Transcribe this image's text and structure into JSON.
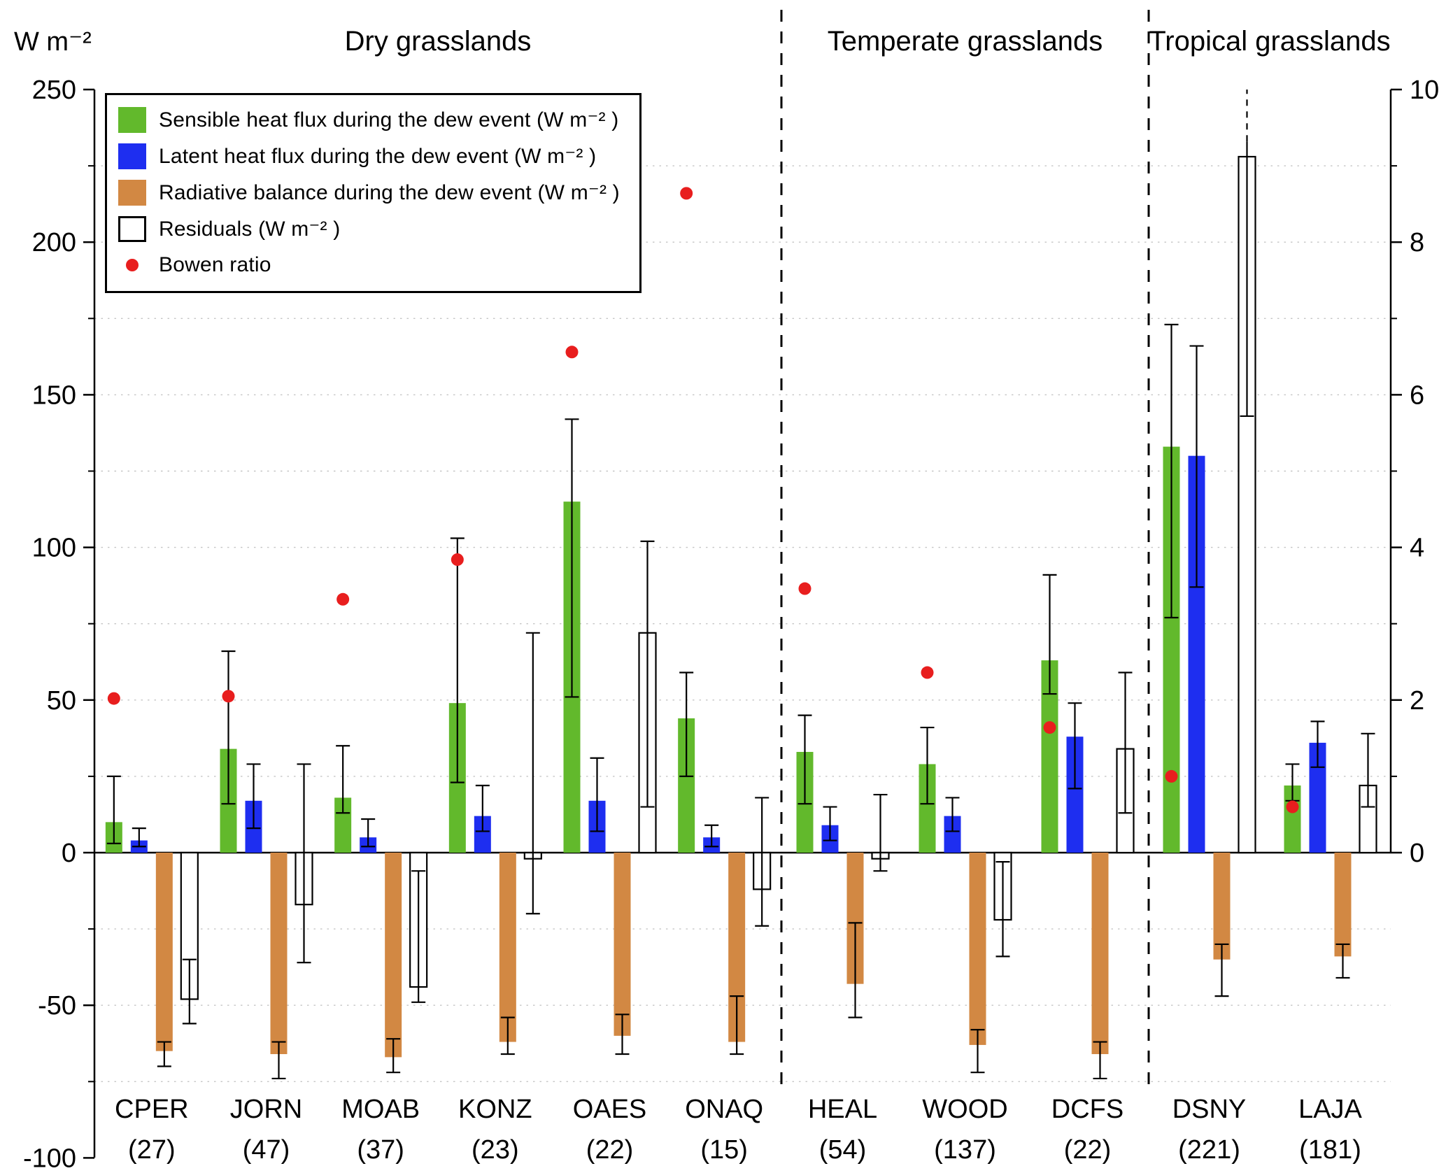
{
  "figure": {
    "y_axis_unit_label": "W m⁻²"
  },
  "legend": {
    "items": [
      {
        "key": "sensible",
        "label": "Sensible heat flux during the dew event (W m⁻² )"
      },
      {
        "key": "latent",
        "label": "Latent heat flux during the dew event (W m⁻² )"
      },
      {
        "key": "radiative",
        "label": "Radiative balance during the dew event (W m⁻² )"
      },
      {
        "key": "residuals",
        "label": "Residuals (W m⁻² )"
      },
      {
        "key": "bowen",
        "label": "Bowen ratio"
      }
    ]
  },
  "axes": {
    "left": {
      "ticks": [
        250,
        200,
        150,
        100,
        50,
        0,
        -50,
        -100
      ],
      "range": [
        -100,
        250
      ]
    },
    "right": {
      "ticks": [
        10,
        8,
        6,
        4,
        2,
        0
      ],
      "range": [
        0,
        10
      ]
    }
  },
  "chart_data": {
    "type": "bar",
    "title": "",
    "grid_color": "#c5c5c5",
    "ylim_left": [
      -100,
      250
    ],
    "ylim_right": [
      0,
      10
    ],
    "sections": [
      {
        "label": "Dry grasslands",
        "sites": 6
      },
      {
        "label": "Temperate grasslands",
        "sites": 3
      },
      {
        "label": "Tropical grasslands",
        "sites": 2
      }
    ],
    "categories": [
      "CPER",
      "JORN",
      "MOAB",
      "KONZ",
      "OAES",
      "ONAQ",
      "HEAL",
      "WOOD",
      "DCFS",
      "DSNY",
      "LAJA"
    ],
    "counts": [
      27,
      47,
      37,
      23,
      22,
      15,
      54,
      137,
      22,
      221,
      181
    ],
    "series": [
      {
        "key": "sensible",
        "name": "Sensible heat flux during the dew event (W m⁻²)",
        "color": "#62b92c",
        "values": [
          10,
          34,
          18,
          49,
          115,
          44,
          33,
          29,
          63,
          133,
          22
        ],
        "err_lo": [
          3,
          16,
          13,
          23,
          51,
          25,
          16,
          16,
          52,
          77,
          17
        ],
        "err_hi": [
          25,
          66,
          35,
          103,
          142,
          59,
          45,
          41,
          91,
          173,
          29
        ]
      },
      {
        "key": "latent",
        "name": "Latent heat flux during the dew event (W m⁻²)",
        "color": "#1e2ef0",
        "values": [
          4,
          17,
          5,
          12,
          17,
          5,
          9,
          12,
          38,
          130,
          36
        ],
        "err_lo": [
          2,
          8,
          2,
          7,
          7,
          2,
          4,
          7,
          21,
          87,
          28
        ],
        "err_hi": [
          8,
          29,
          11,
          22,
          31,
          9,
          15,
          18,
          49,
          166,
          43
        ]
      },
      {
        "key": "radiative",
        "name": "Radiative balance during the dew event (W m⁻²)",
        "color": "#d28843",
        "values": [
          -65,
          -66,
          -67,
          -62,
          -60,
          -62,
          -43,
          -63,
          -66,
          -35,
          -34
        ],
        "err_lo": [
          -70,
          -74,
          -72,
          -66,
          -66,
          -66,
          -54,
          -72,
          -74,
          -47,
          -41
        ],
        "err_hi": [
          -62,
          -62,
          -61,
          -54,
          -53,
          -47,
          -23,
          -58,
          -62,
          -30,
          -30
        ]
      },
      {
        "key": "residuals",
        "name": "Residuals (W m⁻²)",
        "color": "#ffffff",
        "stroke": "#000000",
        "values": [
          -48,
          -17,
          -44,
          -2,
          72,
          -12,
          -2,
          -22,
          34,
          228,
          22
        ],
        "err_lo": [
          -56,
          -36,
          -49,
          -20,
          15,
          -24,
          -6,
          -34,
          13,
          143,
          15
        ],
        "err_hi": [
          -35,
          29,
          -6,
          72,
          102,
          18,
          19,
          -3,
          59,
          250,
          39
        ],
        "overflow_top": [
          9
        ]
      }
    ],
    "bowen_ratio": {
      "name": "Bowen ratio",
      "color": "#e81e1e",
      "axis": "right",
      "values": [
        2.02,
        2.05,
        3.32,
        3.84,
        6.56,
        8.64,
        3.46,
        2.36,
        1.64,
        1.0,
        0.6
      ]
    }
  }
}
